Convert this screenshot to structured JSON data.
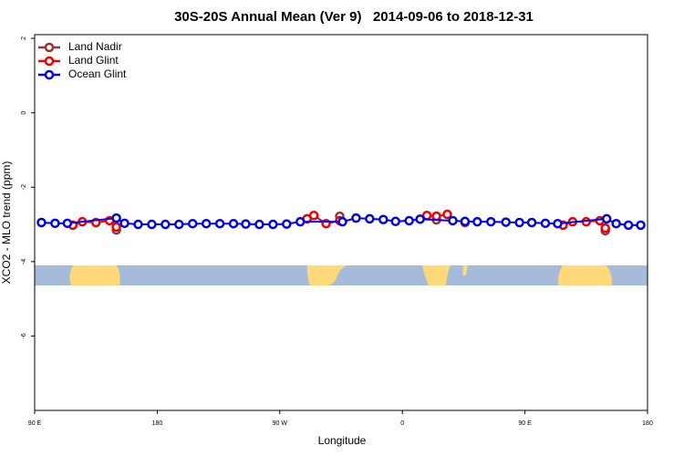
{
  "chart_data": {
    "type": "line",
    "title": "30S-20S Annual Mean (Ver 9)   2014-09-06 to 2018-12-31",
    "x_label": "Longitude",
    "y_label": "XCO2 - MLO trend (ppm)",
    "xlim": [
      90,
      540
    ],
    "xticks": [
      {
        "value": 90,
        "label": "90 E"
      },
      {
        "value": 180,
        "label": "180"
      },
      {
        "value": 270,
        "label": "90 W"
      },
      {
        "value": 360,
        "label": "0"
      },
      {
        "value": 450,
        "label": "90 E"
      },
      {
        "value": 540,
        "label": "180"
      }
    ],
    "ylim": [
      -8,
      2.1
    ],
    "yticks": [
      2,
      0,
      -2,
      -4,
      -6
    ],
    "legend": "top-left",
    "series": [
      {
        "name": "Land Nadir",
        "color": "#993333",
        "x": [
          150,
          null,
          314,
          null,
          385,
          null,
          406,
          null,
          509
        ],
        "values": [
          -3.15,
          null,
          -2.78,
          null,
          -2.88,
          null,
          -2.95,
          null,
          -3.17
        ]
      },
      {
        "name": "Land Glint",
        "color": "#ee0000",
        "x": [
          118,
          125,
          135,
          145,
          null,
          150,
          null,
          290,
          295,
          304,
          314,
          null,
          378,
          385,
          393,
          null,
          478,
          485,
          495,
          505,
          509
        ],
        "values": [
          -3.02,
          -2.93,
          -2.95,
          -2.9,
          null,
          -3.07,
          null,
          -2.85,
          -2.76,
          -2.98,
          -2.9,
          null,
          -2.76,
          -2.78,
          -2.73,
          null,
          -3.02,
          -2.93,
          -2.93,
          -2.9,
          -3.1
        ]
      },
      {
        "name": "Ocean Glint",
        "color": "#0000ee",
        "x": [
          95,
          105,
          114,
          150,
          156,
          166,
          176,
          186,
          196,
          206,
          216,
          226,
          236,
          245,
          255,
          265,
          275,
          285,
          316,
          326,
          336,
          346,
          355,
          365,
          373,
          397,
          406,
          415,
          425,
          436,
          446,
          455,
          465,
          474,
          510,
          517,
          526,
          535
        ],
        "values": [
          -2.95,
          -2.97,
          -2.97,
          -2.83,
          -2.97,
          -3.0,
          -3.0,
          -3.0,
          -3.0,
          -2.98,
          -2.98,
          -2.98,
          -2.98,
          -2.99,
          -3.0,
          -3.0,
          -2.99,
          -2.93,
          -2.93,
          -2.83,
          -2.85,
          -2.87,
          -2.92,
          -2.9,
          -2.86,
          -2.9,
          -2.92,
          -2.93,
          -2.93,
          -2.94,
          -2.95,
          -2.95,
          -2.97,
          -2.98,
          -2.85,
          -2.98,
          -3.02,
          -3.02
        ]
      }
    ]
  }
}
